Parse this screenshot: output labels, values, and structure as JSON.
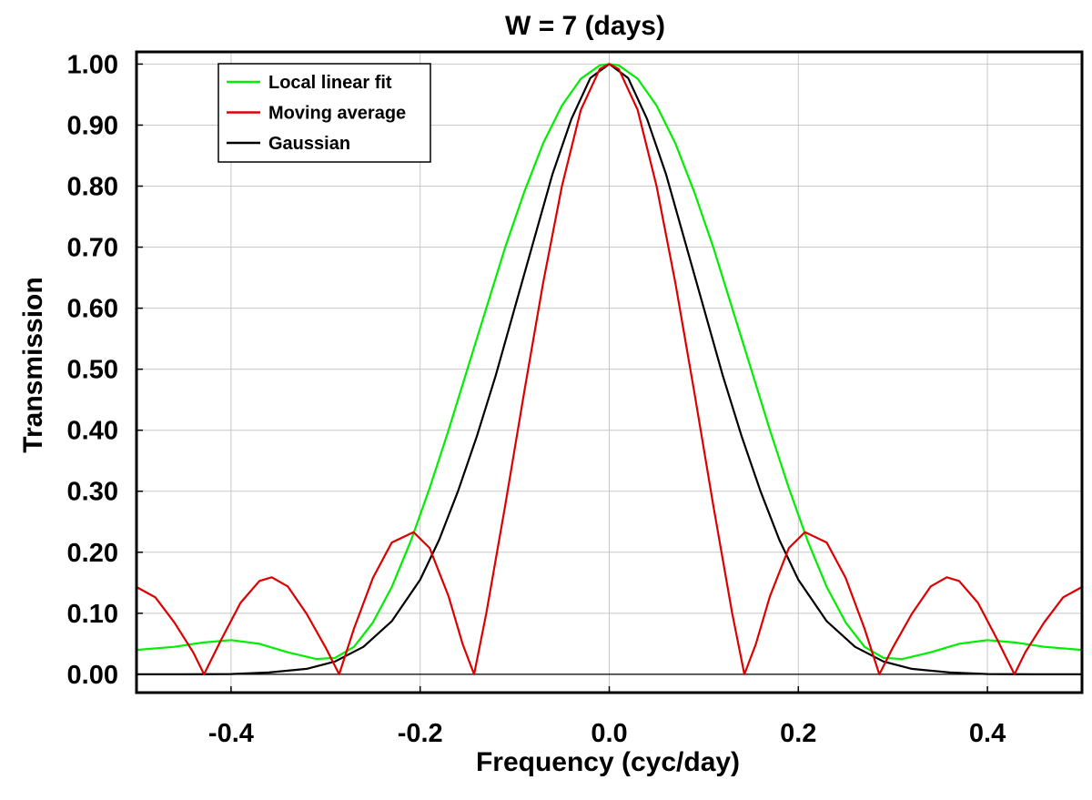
{
  "chart_data": {
    "type": "line",
    "title": "W = 7 (days)",
    "xlabel": "Frequency (cyc/day)",
    "ylabel": "Transmission",
    "xlim": [
      -0.5,
      0.5
    ],
    "ylim": [
      -0.03,
      1.02
    ],
    "grid": true,
    "legend_position": "top-left",
    "x_ticks": [
      {
        "value": -0.4,
        "label": "-0.4"
      },
      {
        "value": -0.2,
        "label": "-0.2"
      },
      {
        "value": 0.0,
        "label": "0.0"
      },
      {
        "value": 0.2,
        "label": "0.2"
      },
      {
        "value": 0.4,
        "label": "0.4"
      }
    ],
    "y_ticks": [
      {
        "value": 0.0,
        "label": "0.00"
      },
      {
        "value": 0.1,
        "label": "0.10"
      },
      {
        "value": 0.2,
        "label": "0.20"
      },
      {
        "value": 0.3,
        "label": "0.30"
      },
      {
        "value": 0.4,
        "label": "0.40"
      },
      {
        "value": 0.5,
        "label": "0.50"
      },
      {
        "value": 0.6,
        "label": "0.60"
      },
      {
        "value": 0.7,
        "label": "0.70"
      },
      {
        "value": 0.8,
        "label": "0.80"
      },
      {
        "value": 0.9,
        "label": "0.90"
      },
      {
        "value": 1.0,
        "label": "1.00"
      }
    ],
    "series": [
      {
        "name": "Local linear fit",
        "color": "#00ee00",
        "x": [
          -0.5,
          -0.46,
          -0.43,
          -0.4,
          -0.37,
          -0.34,
          -0.31,
          -0.29,
          -0.27,
          -0.25,
          -0.23,
          -0.21,
          -0.19,
          -0.17,
          -0.15,
          -0.13,
          -0.11,
          -0.09,
          -0.07,
          -0.05,
          -0.03,
          -0.01,
          0.0,
          0.01,
          0.03,
          0.05,
          0.07,
          0.09,
          0.11,
          0.13,
          0.15,
          0.17,
          0.19,
          0.21,
          0.23,
          0.25,
          0.27,
          0.29,
          0.31,
          0.34,
          0.37,
          0.4,
          0.43,
          0.46,
          0.5
        ],
        "values": [
          0.04,
          0.045,
          0.052,
          0.056,
          0.05,
          0.036,
          0.025,
          0.027,
          0.045,
          0.085,
          0.143,
          0.218,
          0.305,
          0.4,
          0.5,
          0.6,
          0.7,
          0.79,
          0.87,
          0.932,
          0.976,
          0.998,
          1.0,
          0.998,
          0.976,
          0.932,
          0.87,
          0.79,
          0.7,
          0.6,
          0.5,
          0.4,
          0.305,
          0.218,
          0.143,
          0.085,
          0.045,
          0.027,
          0.025,
          0.036,
          0.05,
          0.056,
          0.052,
          0.045,
          0.04
        ]
      },
      {
        "name": "Moving average",
        "color": "#dd0000",
        "x": [
          -0.5,
          -0.48,
          -0.46,
          -0.44,
          -0.4286,
          -0.41,
          -0.39,
          -0.37,
          -0.357,
          -0.34,
          -0.32,
          -0.3,
          -0.2857,
          -0.27,
          -0.25,
          -0.23,
          -0.207,
          -0.19,
          -0.17,
          -0.155,
          -0.1429,
          -0.13,
          -0.11,
          -0.09,
          -0.07,
          -0.05,
          -0.03,
          -0.01,
          0.0,
          0.01,
          0.03,
          0.05,
          0.07,
          0.09,
          0.11,
          0.13,
          0.1429,
          0.155,
          0.17,
          0.19,
          0.207,
          0.23,
          0.25,
          0.27,
          0.2857,
          0.3,
          0.32,
          0.34,
          0.357,
          0.37,
          0.39,
          0.41,
          0.4286,
          0.44,
          0.46,
          0.48,
          0.5
        ],
        "values": [
          0.143,
          0.126,
          0.085,
          0.036,
          0.0,
          0.058,
          0.117,
          0.153,
          0.159,
          0.144,
          0.099,
          0.044,
          0.0,
          0.075,
          0.158,
          0.216,
          0.233,
          0.207,
          0.128,
          0.049,
          0.0,
          0.1,
          0.277,
          0.462,
          0.641,
          0.8,
          0.925,
          0.992,
          1.0,
          0.992,
          0.925,
          0.8,
          0.641,
          0.462,
          0.277,
          0.1,
          0.0,
          0.049,
          0.128,
          0.207,
          0.233,
          0.216,
          0.158,
          0.075,
          0.0,
          0.044,
          0.099,
          0.144,
          0.159,
          0.153,
          0.117,
          0.058,
          0.0,
          0.036,
          0.085,
          0.126,
          0.143
        ]
      },
      {
        "name": "Gaussian",
        "color": "#000000",
        "x": [
          -0.5,
          -0.45,
          -0.4,
          -0.36,
          -0.32,
          -0.29,
          -0.26,
          -0.23,
          -0.2,
          -0.18,
          -0.16,
          -0.14,
          -0.12,
          -0.1,
          -0.08,
          -0.06,
          -0.04,
          -0.02,
          0.0,
          0.02,
          0.04,
          0.06,
          0.08,
          0.1,
          0.12,
          0.14,
          0.16,
          0.18,
          0.2,
          0.23,
          0.26,
          0.29,
          0.32,
          0.36,
          0.4,
          0.45,
          0.5
        ],
        "values": [
          0.0,
          0.0,
          0.0005,
          0.003,
          0.009,
          0.021,
          0.045,
          0.087,
          0.155,
          0.22,
          0.3,
          0.39,
          0.49,
          0.6,
          0.71,
          0.82,
          0.91,
          0.977,
          1.0,
          0.977,
          0.91,
          0.82,
          0.71,
          0.6,
          0.49,
          0.39,
          0.3,
          0.22,
          0.155,
          0.087,
          0.045,
          0.021,
          0.009,
          0.003,
          0.0005,
          0.0,
          0.0
        ]
      }
    ]
  }
}
